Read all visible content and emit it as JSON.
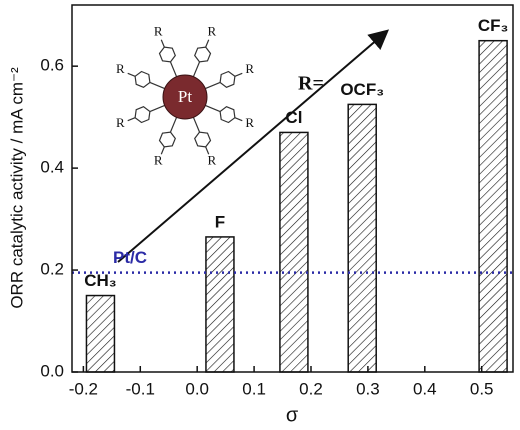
{
  "chart_data": {
    "type": "bar",
    "x_label": "σ",
    "y_label": "ORR catalytic activity / mA cm⁻²",
    "categories": [
      "CH₃",
      "F",
      "Cl",
      "OCF₃",
      "CF₃"
    ],
    "x": [
      -0.17,
      0.04,
      0.17,
      0.29,
      0.52
    ],
    "values": [
      0.15,
      0.265,
      0.47,
      0.525,
      0.65
    ],
    "xlim": [
      -0.22,
      0.555
    ],
    "xticks": [
      -0.2,
      -0.1,
      {
        "value": 0,
        "label": "0.0"
      },
      0.1,
      0.2,
      0.3,
      0.4,
      0.5
    ],
    "ylim": [
      0,
      0.72
    ],
    "yticks": [
      {
        "value": 0,
        "label": "0.0"
      },
      0.2,
      0.4,
      0.6
    ],
    "reference": {
      "label": "Pt/C",
      "value": 0.195,
      "color": "#2b2ba6"
    },
    "annotation": "R=",
    "molecule": {
      "center": "Pt",
      "substituent": "R"
    }
  }
}
